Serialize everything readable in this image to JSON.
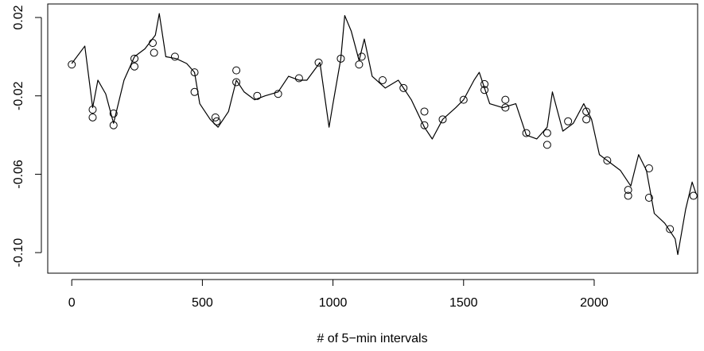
{
  "chart_data": {
    "type": "line",
    "xlabel": "# of 5−min intervals",
    "xlim": [
      -92,
      2396
    ],
    "ylim": [
      -0.1105,
      0.0269
    ],
    "xticks": [
      0,
      500,
      1000,
      1500,
      2000
    ],
    "yticks": [
      0.02,
      -0.02,
      -0.06,
      {
        "value": -0.1,
        "label": "-0.10"
      }
    ],
    "series": [
      {
        "color": "#000000",
        "marker": "none",
        "x": [
          0,
          50,
          80,
          100,
          130,
          160,
          200,
          240,
          280,
          320,
          335,
          360,
          400,
          440,
          470,
          490,
          530,
          560,
          600,
          630,
          660,
          700,
          740,
          790,
          830,
          870,
          900,
          950,
          985,
          1000,
          1030,
          1045,
          1070,
          1100,
          1120,
          1150,
          1200,
          1250,
          1300,
          1350,
          1380,
          1420,
          1470,
          1500,
          1540,
          1560,
          1600,
          1650,
          1700,
          1740,
          1780,
          1820,
          1840,
          1880,
          1920,
          1960,
          1990,
          2020,
          2060,
          2100,
          2140,
          2170,
          2200,
          2230,
          2270,
          2310,
          2320,
          2350,
          2375,
          2390
        ],
        "values": [
          -0.0035,
          0.0054,
          -0.026,
          -0.012,
          -0.019,
          -0.034,
          -0.012,
          0,
          0.004,
          0.011,
          0.022,
          0,
          -0.001,
          -0.0035,
          -0.008,
          -0.024,
          -0.032,
          -0.036,
          -0.028,
          -0.012,
          -0.018,
          -0.022,
          -0.02,
          -0.018,
          -0.01,
          -0.012,
          -0.012,
          -0.003,
          -0.036,
          -0.024,
          -0.001,
          0.021,
          0.013,
          -0.002,
          0.009,
          -0.01,
          -0.016,
          -0.012,
          -0.022,
          -0.036,
          -0.042,
          -0.032,
          -0.026,
          -0.022,
          -0.012,
          -0.008,
          -0.024,
          -0.026,
          -0.024,
          -0.04,
          -0.042,
          -0.036,
          -0.018,
          -0.038,
          -0.034,
          -0.024,
          -0.032,
          -0.05,
          -0.054,
          -0.058,
          -0.066,
          -0.05,
          -0.058,
          -0.08,
          -0.085,
          -0.093,
          -0.101,
          -0.078,
          -0.064,
          -0.07
        ]
      },
      {
        "color": "#000000",
        "marker": "circle",
        "x": [
          0,
          80,
          80,
          160,
          160,
          240,
          240,
          310,
          315,
          395,
          470,
          470,
          550,
          555,
          630,
          630,
          710,
          790,
          870,
          945,
          1030,
          1100,
          1110,
          1190,
          1270,
          1350,
          1350,
          1420,
          1500,
          1580,
          1580,
          1660,
          1660,
          1740,
          1820,
          1820,
          1900,
          1970,
          1970,
          2050,
          2130,
          2130,
          2210,
          2210,
          2290,
          2380
        ],
        "values": [
          -0.004,
          -0.027,
          -0.031,
          -0.029,
          -0.035,
          -0.001,
          -0.005,
          0.007,
          0.002,
          0,
          -0.008,
          -0.018,
          -0.031,
          -0.033,
          -0.007,
          -0.013,
          -0.02,
          -0.019,
          -0.011,
          -0.003,
          -0.001,
          -0.004,
          0,
          -0.012,
          -0.016,
          -0.028,
          -0.035,
          -0.032,
          -0.022,
          -0.014,
          -0.017,
          -0.022,
          -0.026,
          -0.039,
          -0.039,
          -0.045,
          -0.033,
          -0.028,
          -0.032,
          -0.053,
          -0.068,
          -0.071,
          -0.057,
          -0.072,
          -0.088,
          -0.071
        ]
      }
    ]
  }
}
